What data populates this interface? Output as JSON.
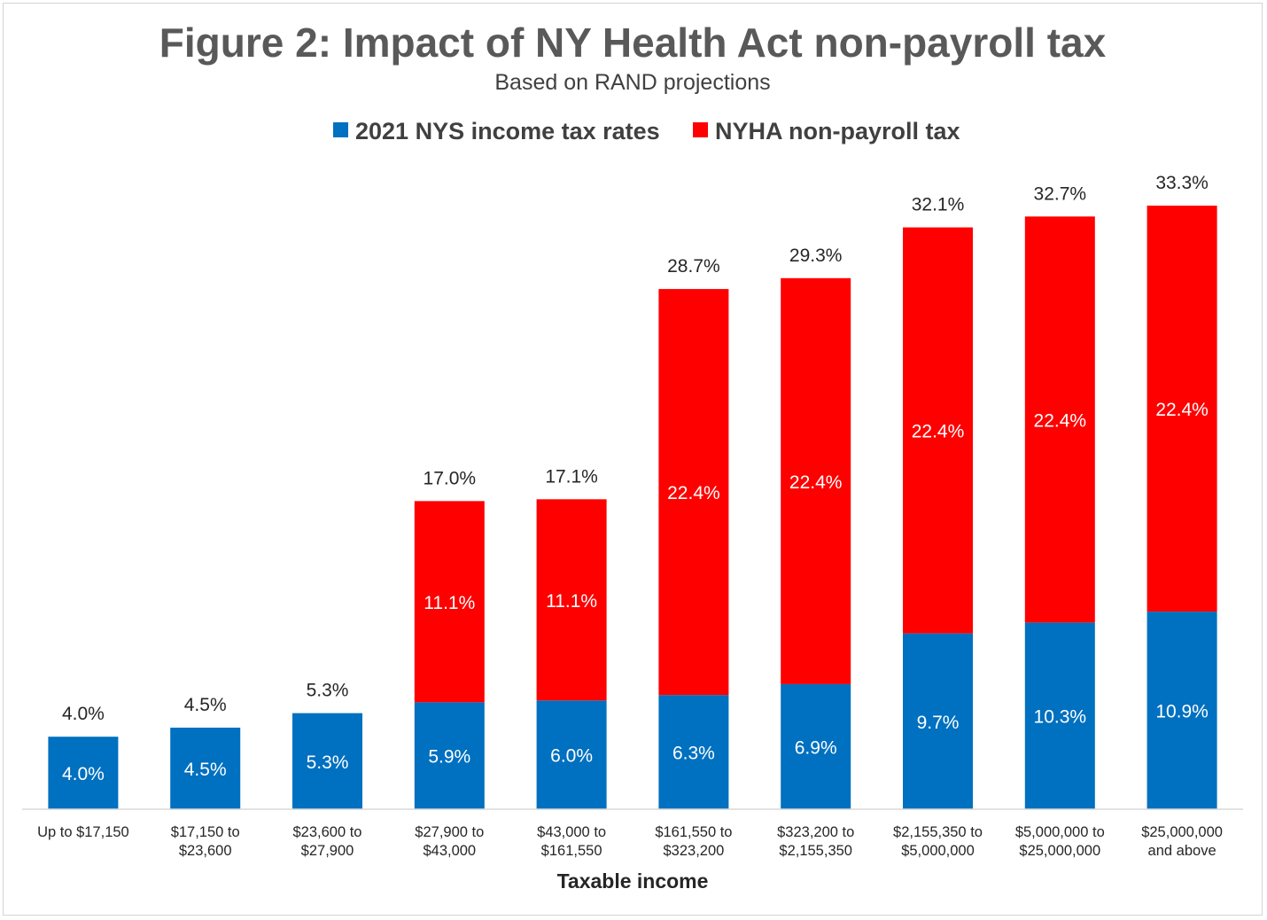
{
  "chart_data": {
    "type": "bar",
    "stacked": true,
    "title": "Figure 2: Impact of NY Health Act non-payroll tax",
    "subtitle": "Based on RAND projections",
    "xlabel": "Taxable income",
    "ylabel": "",
    "ylim": [
      0,
      35
    ],
    "grid": false,
    "legend_position": "top",
    "categories": [
      [
        "Up to $17,150"
      ],
      [
        "$17,150 to",
        "$23,600"
      ],
      [
        "$23,600 to",
        "$27,900"
      ],
      [
        "$27,900 to",
        "$43,000"
      ],
      [
        "$43,000 to",
        "$161,550"
      ],
      [
        "$161,550 to",
        "$323,200"
      ],
      [
        "$323,200 to",
        "$2,155,350"
      ],
      [
        "$2,155,350 to",
        "$5,000,000"
      ],
      [
        "$5,000,000 to",
        "$25,000,000"
      ],
      [
        "$25,000,000",
        "and above"
      ]
    ],
    "series": [
      {
        "name": "2021 NYS income tax rates",
        "color": "#0070c0",
        "values": [
          4.0,
          4.5,
          5.3,
          5.9,
          6.0,
          6.3,
          6.9,
          9.7,
          10.3,
          10.9
        ],
        "labels": [
          "4.0%",
          "4.5%",
          "5.3%",
          "5.9%",
          "6.0%",
          "6.3%",
          "6.9%",
          "9.7%",
          "10.3%",
          "10.9%"
        ]
      },
      {
        "name": "NYHA non-payroll tax",
        "color": "#ff0000",
        "values": [
          0,
          0,
          0,
          11.1,
          11.1,
          22.4,
          22.4,
          22.4,
          22.4,
          22.4
        ],
        "labels": [
          "",
          "",
          "",
          "11.1%",
          "11.1%",
          "22.4%",
          "22.4%",
          "22.4%",
          "22.4%",
          "22.4%"
        ]
      }
    ],
    "totals": [
      4.0,
      4.5,
      5.3,
      17.0,
      17.1,
      28.7,
      29.3,
      32.1,
      32.7,
      33.3
    ],
    "total_labels": [
      "4.0%",
      "4.5%",
      "5.3%",
      "17.0%",
      "17.1%",
      "28.7%",
      "29.3%",
      "32.1%",
      "32.7%",
      "33.3%"
    ]
  }
}
